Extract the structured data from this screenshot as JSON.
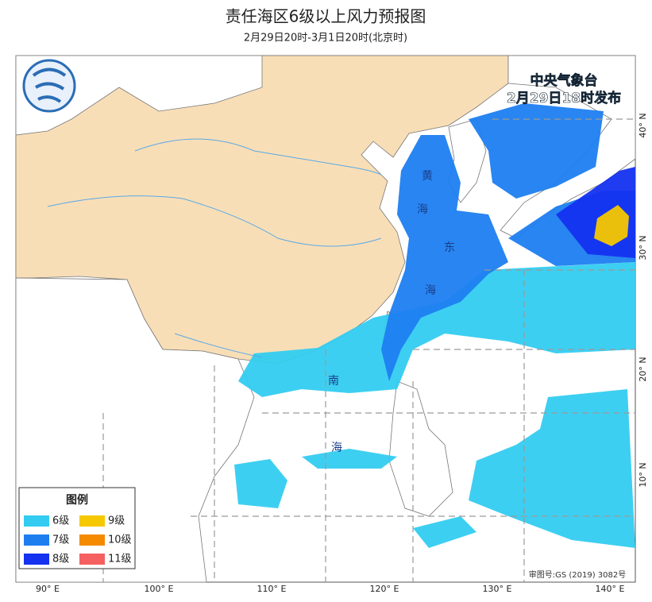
{
  "header": {
    "title": "责任海区6级以上风力预报图",
    "subtitle": "2月29日20时-3月1日20时(北京时)"
  },
  "issuer": {
    "agency": "中央气象台",
    "issued": "2月29日18时发布"
  },
  "legend": {
    "title": "图例",
    "items": [
      {
        "label": "6级",
        "color": "#33ccf0"
      },
      {
        "label": "9级",
        "color": "#f5c800"
      },
      {
        "label": "7级",
        "color": "#1e7ef0"
      },
      {
        "label": "10级",
        "color": "#f58a00"
      },
      {
        "label": "8级",
        "color": "#1432f0"
      },
      {
        "label": "11级",
        "color": "#f56060"
      }
    ]
  },
  "sea_labels": [
    "黄",
    "海",
    "东",
    "海",
    "南",
    "海"
  ],
  "longitude_labels": [
    "90° E",
    "100° E",
    "110° E",
    "120° E",
    "130° E",
    "140° E"
  ],
  "latitude_labels": [
    "40° N",
    "30° N",
    "20° N",
    "10° N"
  ],
  "approval": "审图号:GS (2019) 3082号"
}
